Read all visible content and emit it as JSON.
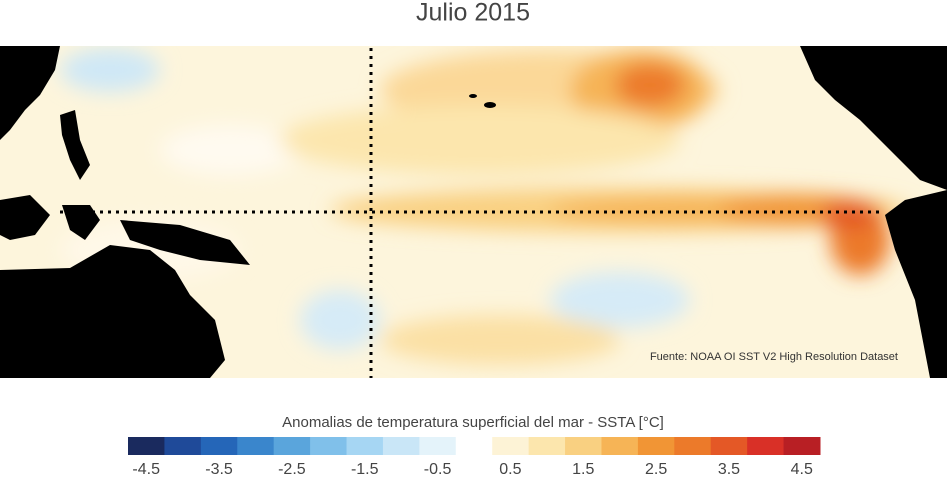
{
  "title": "Julio 2015",
  "map": {
    "source": "Fuente: NOAA OI SST V2 High Resolution Dataset"
  },
  "colorbar": {
    "label": "Anomalias de temperatura superficial del mar - SSTA  [°C]",
    "lim": [
      -4.75,
      4.75
    ],
    "colors": [
      "#1a2a5e",
      "#1f4a99",
      "#2566b8",
      "#3a86cc",
      "#5aa5dc",
      "#80c0ea",
      "#a6d6f3",
      "#c9e6f7",
      "#e4f3fa",
      "#ffffff",
      "#fdf3d6",
      "#fce6ad",
      "#f9d081",
      "#f6b456",
      "#f19535",
      "#ec7a2a",
      "#e45826",
      "#d93027",
      "#b81f24"
    ],
    "ticks": [
      -4.5,
      -3.5,
      -2.5,
      -1.5,
      -0.5,
      0.5,
      1.5,
      2.5,
      3.5,
      4.5
    ]
  }
}
